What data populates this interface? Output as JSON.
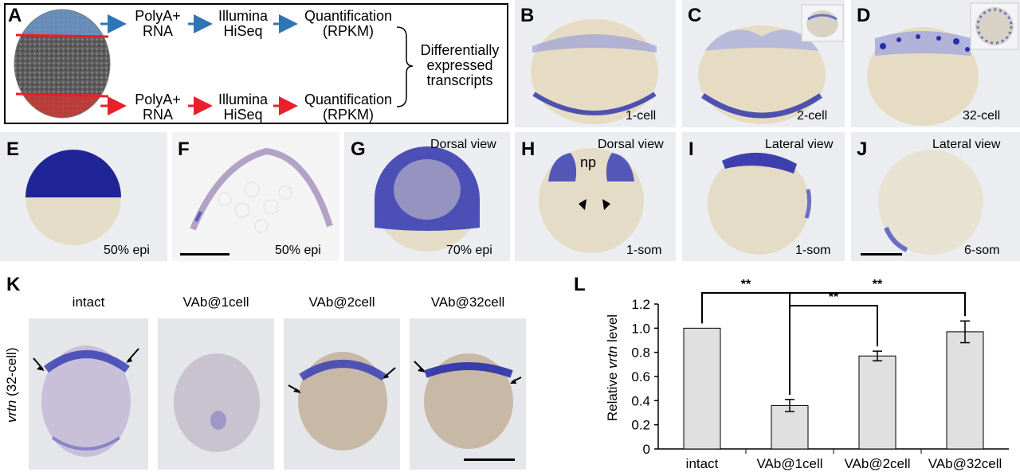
{
  "panel_a": {
    "label": "A",
    "top_row": {
      "step1": [
        "PolyA+",
        "RNA"
      ],
      "step2": [
        "Illumina",
        "HiSeq"
      ],
      "step3": [
        "Quantification",
        "(RPKM)"
      ]
    },
    "bottom_row": {
      "step1": [
        "PolyA+",
        "RNA"
      ],
      "step2": [
        "Illumina",
        "HiSeq"
      ],
      "step3": [
        "Quantification",
        "(RPKM)"
      ]
    },
    "result": [
      "Differentially",
      "expressed",
      "transcripts"
    ],
    "colors": {
      "top_arrow": "#2e75b6",
      "bottom_arrow": "#e8202a",
      "top_line": "#e8202a",
      "bottom_line": "#e8202a"
    }
  },
  "panels": {
    "B": {
      "label": "B",
      "stage": "1-cell",
      "view": ""
    },
    "C": {
      "label": "C",
      "stage": "2-cell",
      "view": ""
    },
    "D": {
      "label": "D",
      "stage": "32-cell",
      "view": ""
    },
    "E": {
      "label": "E",
      "stage": "50% epi",
      "view": ""
    },
    "F": {
      "label": "F",
      "stage": "50% epi",
      "view": ""
    },
    "G": {
      "label": "G",
      "stage": "70% epi",
      "view": "Dorsal view"
    },
    "H": {
      "label": "H",
      "stage": "1-som",
      "view": "Dorsal view",
      "annotation": "np"
    },
    "I": {
      "label": "I",
      "stage": "1-som",
      "view": "Lateral view"
    },
    "J": {
      "label": "J",
      "stage": "6-som",
      "view": "Lateral view"
    }
  },
  "panel_k": {
    "label": "K",
    "ylabel_gene": "vrtn",
    "ylabel_stage": "(32-cell)",
    "titles": [
      "intact",
      "VAb@1cell",
      "VAb@2cell",
      "VAb@32cell"
    ]
  },
  "panel_l": {
    "label": "L",
    "significance": "**"
  },
  "stain_color": "#2a2fa8",
  "chart_data": {
    "type": "bar",
    "categories": [
      "intact",
      "VAb@1cell",
      "VAb@2cell",
      "VAb@32cell"
    ],
    "values": [
      1.0,
      0.36,
      0.77,
      0.97
    ],
    "errors": [
      0.0,
      0.05,
      0.04,
      0.09
    ],
    "ylabel_prefix": "Relative ",
    "ylabel_gene": "vrtn",
    "ylabel_suffix": " level",
    "ylim": [
      0,
      1.2
    ],
    "yticks": [
      "0",
      "0.2",
      "0.4",
      "0.6",
      "0.8",
      "1.0",
      "1.2"
    ],
    "bar_color": "#e0e0e0",
    "significance": [
      {
        "from": "intact",
        "to": "VAb@1cell",
        "label": "**"
      },
      {
        "from": "VAb@1cell",
        "to": "VAb@32cell",
        "label": "**"
      },
      {
        "from": "VAb@1cell",
        "to": "VAb@2cell",
        "label": "**"
      }
    ]
  }
}
